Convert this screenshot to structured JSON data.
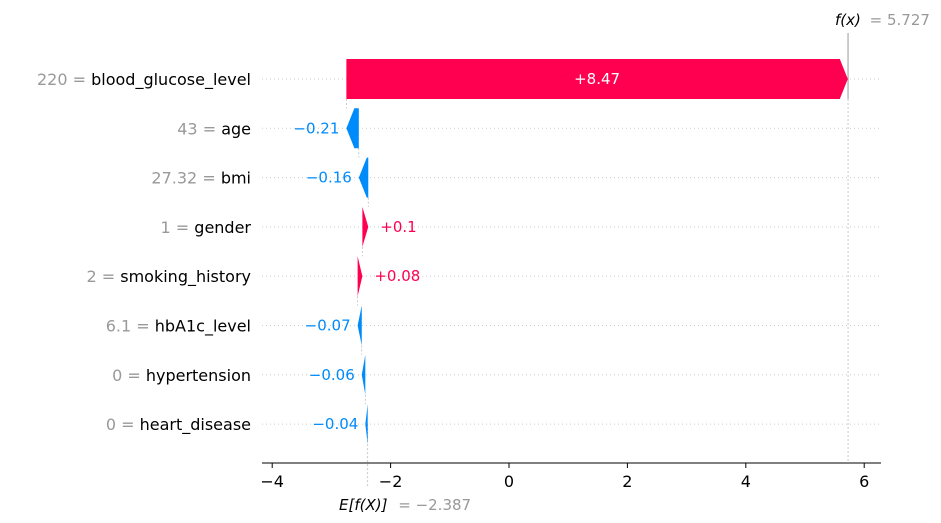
{
  "chart_data": {
    "type": "bar",
    "title": "",
    "xlabel": "",
    "ylabel": "",
    "xlim": [
      -4.2,
      6.3
    ],
    "x_ticks": [
      -4,
      -2,
      0,
      2,
      4,
      6
    ],
    "x_tick_labels": [
      "−4",
      "−2",
      "0",
      "2",
      "4",
      "6"
    ],
    "grid": false,
    "colors": {
      "positive": "#ff0051",
      "negative": "#008bfb"
    },
    "base_value": -2.387,
    "output_value": 5.727,
    "fx_prefix": "f(x)",
    "fx_value_label": "= 5.727",
    "efx_prefix": "E[f(X)]",
    "efx_value_label": "= −2.387",
    "features": [
      {
        "value": "220",
        "name": "blood_glucose_level",
        "contribution": 8.47,
        "label": "+8.47"
      },
      {
        "value": "43",
        "name": "age",
        "contribution": -0.21,
        "label": "−0.21"
      },
      {
        "value": "27.32",
        "name": "bmi",
        "contribution": -0.16,
        "label": "−0.16"
      },
      {
        "value": "1",
        "name": "gender",
        "contribution": 0.1,
        "label": "+0.1"
      },
      {
        "value": "2",
        "name": "smoking_history",
        "contribution": 0.08,
        "label": "+0.08"
      },
      {
        "value": "6.1",
        "name": "hbA1c_level",
        "contribution": -0.07,
        "label": "−0.07"
      },
      {
        "value": "0",
        "name": "hypertension",
        "contribution": -0.06,
        "label": "−0.06"
      },
      {
        "value": "0",
        "name": "heart_disease",
        "contribution": -0.04,
        "label": "−0.04"
      }
    ]
  }
}
